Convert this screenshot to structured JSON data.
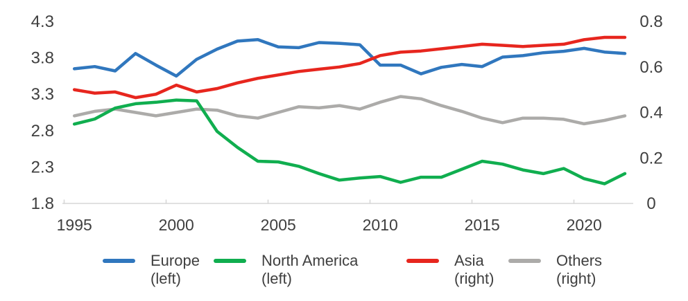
{
  "chart_data": {
    "type": "line",
    "x": [
      1995,
      1996,
      1997,
      1998,
      1999,
      2000,
      2001,
      2002,
      2003,
      2004,
      2005,
      2006,
      2007,
      2008,
      2009,
      2010,
      2011,
      2012,
      2013,
      2014,
      2015,
      2016,
      2017,
      2018,
      2019,
      2020,
      2021,
      2022
    ],
    "x_tick_labels": [
      "1995",
      "2000",
      "2005",
      "2010",
      "2015",
      "2020"
    ],
    "left_axis": {
      "min": 1.8,
      "max": 4.3,
      "ticks": [
        "4.3",
        "3.8",
        "3.3",
        "2.8",
        "2.3",
        "1.8"
      ]
    },
    "right_axis": {
      "min": 0,
      "max": 0.8,
      "ticks": [
        "0.8",
        "0.6",
        "0.4",
        "0.2",
        "0"
      ]
    },
    "grid": false,
    "legend_position": "bottom",
    "series": [
      {
        "name": "Europe",
        "axis": "left",
        "axis_label": "(left)",
        "color": "#3077BE",
        "values": [
          3.65,
          3.68,
          3.62,
          3.86,
          3.7,
          3.55,
          3.78,
          3.92,
          4.03,
          4.05,
          3.95,
          3.94,
          4.01,
          4.0,
          3.98,
          3.7,
          3.7,
          3.58,
          3.67,
          3.71,
          3.68,
          3.81,
          3.83,
          3.87,
          3.89,
          3.93,
          3.88,
          3.86
        ]
      },
      {
        "name": "North America",
        "axis": "left",
        "axis_label": "(left)",
        "color": "#10AE4F",
        "values": [
          2.89,
          2.96,
          3.11,
          3.17,
          3.19,
          3.22,
          3.21,
          2.79,
          2.57,
          2.38,
          2.37,
          2.31,
          2.21,
          2.12,
          2.15,
          2.17,
          2.09,
          2.16,
          2.16,
          2.27,
          2.38,
          2.34,
          2.26,
          2.21,
          2.28,
          2.14,
          2.07,
          2.21
        ]
      },
      {
        "name": "Asia",
        "axis": "right",
        "axis_label": "(right)",
        "color": "#E7261E",
        "values": [
          0.5,
          0.485,
          0.49,
          0.465,
          0.48,
          0.52,
          0.49,
          0.505,
          0.53,
          0.55,
          0.565,
          0.58,
          0.59,
          0.6,
          0.615,
          0.65,
          0.665,
          0.67,
          0.68,
          0.69,
          0.7,
          0.695,
          0.69,
          0.695,
          0.7,
          0.72,
          0.73,
          0.73
        ]
      },
      {
        "name": "Others",
        "axis": "right",
        "axis_label": "(right)",
        "color": "#ACABA9",
        "values": [
          0.385,
          0.405,
          0.415,
          0.4,
          0.385,
          0.4,
          0.415,
          0.41,
          0.385,
          0.375,
          0.4,
          0.425,
          0.42,
          0.43,
          0.415,
          0.445,
          0.47,
          0.46,
          0.43,
          0.405,
          0.375,
          0.355,
          0.375,
          0.375,
          0.37,
          0.35,
          0.365,
          0.385
        ]
      }
    ],
    "colors": {
      "axis_line": "#D7D7D7",
      "tick_text": "#3F3F3F"
    }
  }
}
